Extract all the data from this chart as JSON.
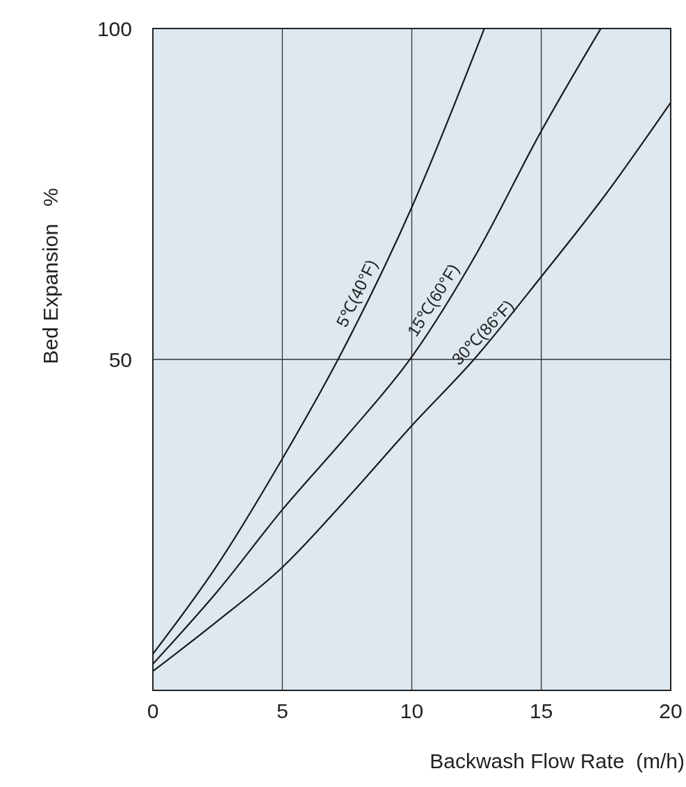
{
  "chart_data": {
    "type": "line",
    "xlabel": "Backwash Flow Rate  (m/h)",
    "ylabel": "Bed Expansion   %",
    "xlim": [
      0,
      20
    ],
    "ylim": [
      0,
      100
    ],
    "xticks": [
      0,
      5,
      10,
      15,
      20
    ],
    "yticks": [
      50,
      100
    ],
    "grid": true,
    "line_style": "solid",
    "series": [
      {
        "color": "#1a1a1a",
        "x": [
          0,
          2.5,
          5,
          7.15,
          10,
          12.8
        ],
        "values": [
          5.5,
          19,
          35,
          50,
          73,
          100
        ]
      },
      {
        "color": "#1a1a1a",
        "x": [
          0,
          2.5,
          5,
          7.5,
          10,
          12.5,
          15,
          17.3
        ],
        "values": [
          4,
          15,
          27.3,
          38.5,
          50.4,
          66,
          84.5,
          100
        ]
      },
      {
        "color": "#1a1a1a",
        "x": [
          0,
          2.5,
          5,
          7.5,
          10,
          12.4,
          15,
          17.5,
          20
        ],
        "values": [
          2.9,
          10.5,
          18.6,
          29,
          40,
          50,
          62.5,
          75,
          88.8
        ]
      }
    ],
    "annotations": [
      "5℃(40°F)",
      "15℃(60°F)",
      "30℃(86°F)"
    ]
  }
}
